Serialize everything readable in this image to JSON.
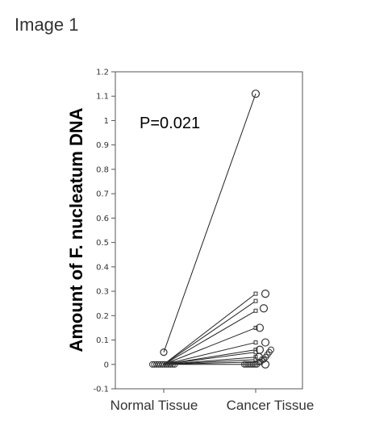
{
  "figure_label": "Image 1",
  "chart_data": {
    "type": "scatter",
    "title": "",
    "xlabel": "",
    "ylabel": "Amount of F. nucleatum DNA",
    "categories": [
      "Normal Tissue",
      "Cancer Tissue"
    ],
    "ylim": [
      -0.1,
      1.2
    ],
    "yticks": [
      -0.1,
      0,
      0.1,
      0.2,
      0.3,
      0.4,
      0.5,
      0.6,
      0.7,
      0.8,
      0.9,
      1,
      1.1,
      1.2
    ],
    "ytick_labels": [
      "-0.1",
      "0",
      "0.1",
      "0.2",
      "0.3",
      "0.4",
      "0.5",
      "0.6",
      "0.7",
      "0.8",
      "0.9",
      "1",
      "1.1",
      "1.2"
    ],
    "annotation": "P=0.021",
    "grid": false,
    "paired_lines": [
      {
        "normal": 0.05,
        "cancer": 1.11
      },
      {
        "normal": 0.0,
        "cancer": 0.29
      },
      {
        "normal": 0.0,
        "cancer": 0.26
      },
      {
        "normal": 0.0,
        "cancer": 0.22
      },
      {
        "normal": 0.0,
        "cancer": 0.15
      },
      {
        "normal": 0.0,
        "cancer": 0.09
      },
      {
        "normal": 0.0,
        "cancer": 0.06
      },
      {
        "normal": 0.0,
        "cancer": 0.05
      },
      {
        "normal": 0.0,
        "cancer": 0.03
      },
      {
        "normal": 0.0,
        "cancer": 0.02
      },
      {
        "normal": 0.0,
        "cancer": 0.01
      },
      {
        "normal": 0.0,
        "cancer": 0.0
      }
    ],
    "outliers": {
      "normal": [
        0.05
      ],
      "cancer": [
        1.11,
        0.29,
        0.23,
        0.15,
        0.09,
        0.06,
        0.03,
        0.0
      ]
    },
    "normal_cluster": [
      0.0,
      0.0,
      0.0,
      0.0,
      0.0,
      0.0,
      0.0,
      0.0,
      0.0,
      0.0,
      0.0,
      0.0
    ],
    "cancer_cluster": [
      0.0,
      0.0,
      0.0,
      0.0,
      0.0,
      0.0,
      0.0,
      0.0,
      0.01,
      0.01,
      0.02,
      0.02,
      0.03,
      0.04,
      0.05,
      0.06
    ]
  }
}
